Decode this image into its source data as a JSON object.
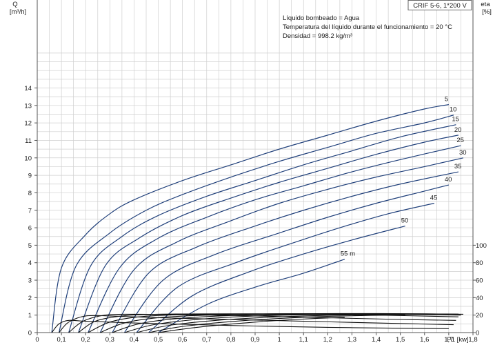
{
  "title_box": "CRIF 5-6, 1*200 V",
  "info": {
    "line1": "Líquido bombeado = Agua",
    "line2": "Temperatura del líquido durante el funcionamiento = 20 °C",
    "line3": "Densidad = 998.2 kg/m³"
  },
  "chart_data": {
    "type": "line",
    "y_axis_left": {
      "label_line1": "Q",
      "label_line2": "[m³/h]",
      "range": [
        0,
        14
      ],
      "ticks": [
        "0",
        "1",
        "2",
        "3",
        "4",
        "5",
        "6",
        "7",
        "8",
        "9",
        "10",
        "11",
        "12",
        "13",
        "14"
      ]
    },
    "y_axis_right": {
      "label_line1": "eta",
      "label_line2": "[%]",
      "range": [
        0,
        100
      ],
      "ticks": [
        "0",
        "20",
        "40",
        "60",
        "80",
        "100"
      ]
    },
    "x_axis": {
      "label": "P1 [kw]",
      "range": [
        0,
        1.8
      ],
      "ticks": [
        "0",
        "0,1",
        "0,2",
        "0,3",
        "0,4",
        "0,5",
        "0,6",
        "0,7",
        "0,8",
        "0,9",
        "1",
        "1,1",
        "1,2",
        "1,3",
        "1,4",
        "1,5",
        "1,6",
        "1,7",
        "1,8"
      ]
    },
    "grid": true,
    "colors": {
      "flow": "#1f3f7a",
      "eta": "#111111",
      "grid": "#cfcfcf",
      "axis": "#555555"
    },
    "flow_series": [
      {
        "name": "5",
        "points": [
          [
            0.06,
            0
          ],
          [
            0.1,
            3.7
          ],
          [
            0.2,
            5.6
          ],
          [
            0.3,
            6.8
          ],
          [
            0.4,
            7.6
          ],
          [
            0.6,
            8.7
          ],
          [
            0.8,
            9.6
          ],
          [
            1.0,
            10.5
          ],
          [
            1.2,
            11.3
          ],
          [
            1.4,
            12.1
          ],
          [
            1.6,
            12.8
          ],
          [
            1.7,
            13.05
          ]
        ]
      },
      {
        "name": "10",
        "points": [
          [
            0.09,
            0
          ],
          [
            0.16,
            3.8
          ],
          [
            0.3,
            5.7
          ],
          [
            0.45,
            7.0
          ],
          [
            0.6,
            7.9
          ],
          [
            0.8,
            8.9
          ],
          [
            1.0,
            9.8
          ],
          [
            1.2,
            10.6
          ],
          [
            1.4,
            11.4
          ],
          [
            1.6,
            12.0
          ],
          [
            1.72,
            12.45
          ]
        ]
      },
      {
        "name": "15",
        "points": [
          [
            0.13,
            0
          ],
          [
            0.22,
            3.8
          ],
          [
            0.35,
            5.5
          ],
          [
            0.5,
            6.7
          ],
          [
            0.7,
            7.8
          ],
          [
            0.9,
            8.7
          ],
          [
            1.1,
            9.6
          ],
          [
            1.3,
            10.4
          ],
          [
            1.5,
            11.2
          ],
          [
            1.73,
            11.9
          ]
        ]
      },
      {
        "name": "20",
        "points": [
          [
            0.17,
            0
          ],
          [
            0.28,
            3.8
          ],
          [
            0.42,
            5.4
          ],
          [
            0.6,
            6.7
          ],
          [
            0.8,
            7.7
          ],
          [
            1.0,
            8.6
          ],
          [
            1.2,
            9.4
          ],
          [
            1.4,
            10.2
          ],
          [
            1.6,
            10.9
          ],
          [
            1.74,
            11.3
          ]
        ]
      },
      {
        "name": "25",
        "points": [
          [
            0.21,
            0
          ],
          [
            0.34,
            3.7
          ],
          [
            0.5,
            5.4
          ],
          [
            0.7,
            6.6
          ],
          [
            0.9,
            7.6
          ],
          [
            1.1,
            8.4
          ],
          [
            1.3,
            9.2
          ],
          [
            1.5,
            9.9
          ],
          [
            1.75,
            10.7
          ]
        ]
      },
      {
        "name": "30",
        "points": [
          [
            0.26,
            0
          ],
          [
            0.4,
            3.6
          ],
          [
            0.58,
            5.2
          ],
          [
            0.8,
            6.4
          ],
          [
            1.0,
            7.4
          ],
          [
            1.2,
            8.2
          ],
          [
            1.4,
            8.9
          ],
          [
            1.6,
            9.5
          ],
          [
            1.76,
            10.0
          ]
        ]
      },
      {
        "name": "35",
        "points": [
          [
            0.31,
            0
          ],
          [
            0.46,
            3.4
          ],
          [
            0.66,
            4.9
          ],
          [
            0.9,
            6.1
          ],
          [
            1.1,
            7.0
          ],
          [
            1.3,
            7.8
          ],
          [
            1.5,
            8.5
          ],
          [
            1.74,
            9.2
          ]
        ]
      },
      {
        "name": "40",
        "points": [
          [
            0.36,
            0
          ],
          [
            0.52,
            3.0
          ],
          [
            0.74,
            4.5
          ],
          [
            1.0,
            5.7
          ],
          [
            1.2,
            6.6
          ],
          [
            1.4,
            7.4
          ],
          [
            1.6,
            8.1
          ],
          [
            1.7,
            8.45
          ]
        ]
      },
      {
        "name": "45",
        "points": [
          [
            0.41,
            0
          ],
          [
            0.58,
            2.6
          ],
          [
            0.82,
            4.0
          ],
          [
            1.05,
            5.1
          ],
          [
            1.25,
            6.0
          ],
          [
            1.45,
            6.8
          ],
          [
            1.64,
            7.4
          ]
        ]
      },
      {
        "name": "50",
        "points": [
          [
            0.46,
            0
          ],
          [
            0.64,
            2.1
          ],
          [
            0.88,
            3.5
          ],
          [
            1.1,
            4.5
          ],
          [
            1.3,
            5.3
          ],
          [
            1.52,
            6.1
          ]
        ]
      },
      {
        "name": "55 m",
        "points": [
          [
            0.5,
            0
          ],
          [
            0.7,
            1.6
          ],
          [
            0.9,
            2.6
          ],
          [
            1.1,
            3.4
          ],
          [
            1.27,
            4.2
          ]
        ]
      }
    ],
    "eta_series": [
      {
        "name": "5",
        "points": [
          [
            0.06,
            0
          ],
          [
            0.09,
            10
          ],
          [
            0.13,
            14
          ],
          [
            0.2,
            13
          ],
          [
            0.4,
            11
          ],
          [
            0.6,
            9.5
          ],
          [
            0.9,
            7.5
          ],
          [
            1.2,
            6
          ],
          [
            1.5,
            5
          ],
          [
            1.7,
            4.5
          ]
        ]
      },
      {
        "name": "10",
        "points": [
          [
            0.09,
            0
          ],
          [
            0.13,
            12
          ],
          [
            0.2,
            19
          ],
          [
            0.3,
            19
          ],
          [
            0.5,
            17
          ],
          [
            0.8,
            15
          ],
          [
            1.1,
            13
          ],
          [
            1.4,
            11
          ],
          [
            1.72,
            9
          ]
        ]
      },
      {
        "name": "15",
        "points": [
          [
            0.13,
            0
          ],
          [
            0.19,
            13
          ],
          [
            0.28,
            20
          ],
          [
            0.4,
            21
          ],
          [
            0.6,
            20.5
          ],
          [
            0.9,
            19
          ],
          [
            1.2,
            17
          ],
          [
            1.5,
            15
          ],
          [
            1.73,
            14
          ]
        ]
      },
      {
        "name": "20",
        "points": [
          [
            0.17,
            0
          ],
          [
            0.24,
            13
          ],
          [
            0.35,
            19
          ],
          [
            0.5,
            21
          ],
          [
            0.8,
            21.5
          ],
          [
            1.1,
            21
          ],
          [
            1.4,
            20
          ],
          [
            1.74,
            18
          ]
        ]
      },
      {
        "name": "25",
        "points": [
          [
            0.21,
            0
          ],
          [
            0.3,
            12
          ],
          [
            0.42,
            18
          ],
          [
            0.6,
            20.5
          ],
          [
            0.9,
            21.5
          ],
          [
            1.2,
            21.5
          ],
          [
            1.5,
            21
          ],
          [
            1.75,
            20
          ]
        ]
      },
      {
        "name": "30",
        "points": [
          [
            0.26,
            0
          ],
          [
            0.36,
            11
          ],
          [
            0.5,
            17
          ],
          [
            0.7,
            20
          ],
          [
            1.0,
            21.5
          ],
          [
            1.3,
            21.8
          ],
          [
            1.6,
            21.5
          ],
          [
            1.76,
            21
          ]
        ]
      },
      {
        "name": "35",
        "points": [
          [
            0.31,
            0
          ],
          [
            0.42,
            10
          ],
          [
            0.58,
            16
          ],
          [
            0.8,
            19.5
          ],
          [
            1.1,
            21
          ],
          [
            1.4,
            21.5
          ],
          [
            1.74,
            21.2
          ]
        ]
      },
      {
        "name": "40",
        "points": [
          [
            0.36,
            0
          ],
          [
            0.48,
            9
          ],
          [
            0.66,
            15
          ],
          [
            0.9,
            19
          ],
          [
            1.2,
            20.8
          ],
          [
            1.5,
            21.3
          ],
          [
            1.7,
            21.2
          ]
        ]
      },
      {
        "name": "45",
        "points": [
          [
            0.41,
            0
          ],
          [
            0.54,
            8
          ],
          [
            0.74,
            14
          ],
          [
            1.0,
            18
          ],
          [
            1.3,
            20.3
          ],
          [
            1.64,
            21
          ]
        ]
      },
      {
        "name": "50",
        "points": [
          [
            0.46,
            0
          ],
          [
            0.6,
            7
          ],
          [
            0.82,
            13
          ],
          [
            1.1,
            17.5
          ],
          [
            1.35,
            19.5
          ],
          [
            1.52,
            20
          ]
        ]
      },
      {
        "name": "55 m",
        "points": [
          [
            0.5,
            0
          ],
          [
            0.66,
            6
          ],
          [
            0.9,
            12
          ],
          [
            1.1,
            15.5
          ],
          [
            1.27,
            17.5
          ]
        ]
      }
    ]
  }
}
